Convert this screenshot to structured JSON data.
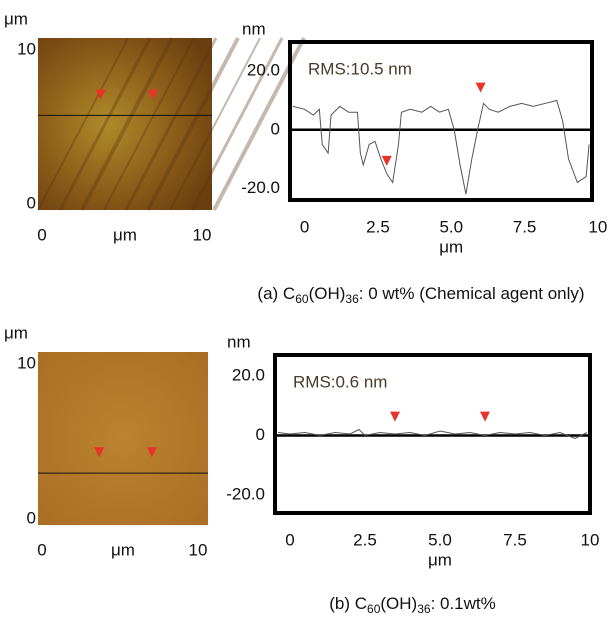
{
  "chart_data": [
    {
      "type": "image",
      "xlabel": "μm",
      "ylabel": "μm",
      "xlim": [
        0,
        10
      ],
      "ylim": [
        0,
        10
      ],
      "xticks": [
        0,
        10
      ],
      "yticks": [
        0,
        10
      ],
      "line_y": 5.5,
      "marker_x": [
        3.6,
        6.6
      ],
      "marker_values": [
        6.3,
        6.3
      ],
      "marker_color": "#e8322a",
      "color": "#a0701c"
    },
    {
      "type": "line",
      "ylabel": "nm",
      "xlabel": "μm",
      "annotation": "RMS:10.5 nm",
      "caption": [
        "(a) C",
        "60",
        "(OH)",
        "36",
        ": 0 wt% (Chemical agent only)"
      ],
      "xlim": [
        -0.5,
        9.8
      ],
      "ylim": [
        -24,
        30
      ],
      "xticks": [
        0,
        2.5,
        {
          "value": 5,
          "label": "5.0"
        },
        7.5,
        10
      ],
      "yticks": [
        {
          "value": 20,
          "label": "20.0"
        },
        0,
        {
          "value": -20,
          "label": "-20.0"
        }
      ],
      "x": [
        -0.4,
        0,
        0.3,
        0.5,
        0.6,
        0.8,
        0.9,
        1.2,
        1.5,
        1.8,
        1.9,
        2.0,
        2.2,
        2.4,
        2.6,
        2.8,
        3.0,
        3.2,
        3.3,
        3.6,
        4.0,
        4.3,
        4.6,
        4.9,
        5.1,
        5.3,
        5.5,
        5.7,
        5.9,
        6.1,
        6.3,
        6.6,
        7.0,
        7.4,
        7.8,
        8.2,
        8.6,
        8.8,
        9.0,
        9.3,
        9.6,
        9.7
      ],
      "values": [
        8,
        7,
        5,
        7,
        -5,
        -8,
        5,
        8,
        6,
        6,
        -8,
        -12,
        -5,
        -4,
        -10,
        -15,
        -18,
        -5,
        6,
        7,
        6,
        8,
        6,
        7,
        0,
        -12,
        -22,
        -10,
        0,
        9,
        7,
        6,
        8,
        9,
        8,
        9,
        10,
        3,
        -10,
        -18,
        -16,
        -5
      ],
      "color": "#555555",
      "marker_x": [
        2.8,
        6.0
      ],
      "marker_values": [
        -13,
        12
      ],
      "marker_color": "#e8322a"
    },
    {
      "type": "image",
      "xlabel": "μm",
      "ylabel": "μm",
      "xlim": [
        0,
        10
      ],
      "ylim": [
        0,
        10
      ],
      "xticks": [
        0,
        10
      ],
      "yticks": [
        0,
        10
      ],
      "line_y": 3.0,
      "marker_x": [
        3.6,
        6.7
      ],
      "marker_values": [
        3.8,
        3.8
      ],
      "marker_color": "#e8322a",
      "color": "#b5782a"
    },
    {
      "type": "line",
      "ylabel": "nm",
      "xlabel": "μm",
      "annotation": "RMS:0.6 nm",
      "caption": [
        "(b) C",
        "60",
        "(OH)",
        "36",
        ": 0.1wt%"
      ],
      "xlim": [
        -0.5,
        10
      ],
      "ylim": [
        -26,
        27
      ],
      "xticks": [
        0,
        2.5,
        {
          "value": 5,
          "label": "5.0"
        },
        7.5,
        10
      ],
      "yticks": [
        {
          "value": 20,
          "label": "20.0"
        },
        0,
        {
          "value": -20,
          "label": "-20.0"
        }
      ],
      "x": [
        -0.4,
        0,
        0.5,
        1,
        1.5,
        2,
        2.3,
        2.5,
        3,
        3.5,
        4,
        4.5,
        5,
        5.5,
        6,
        6.5,
        7,
        7.5,
        8,
        8.5,
        9,
        9.5,
        9.9
      ],
      "values": [
        1,
        0.5,
        1,
        0,
        1,
        0.5,
        2,
        0,
        1,
        0.5,
        1,
        0,
        1.5,
        0.5,
        1,
        0,
        1,
        0.5,
        1,
        0,
        1,
        -1,
        1
      ],
      "color": "#555555",
      "marker_x": [
        3.5,
        6.5
      ],
      "marker_values": [
        4,
        4
      ],
      "marker_color": "#e8322a"
    }
  ]
}
